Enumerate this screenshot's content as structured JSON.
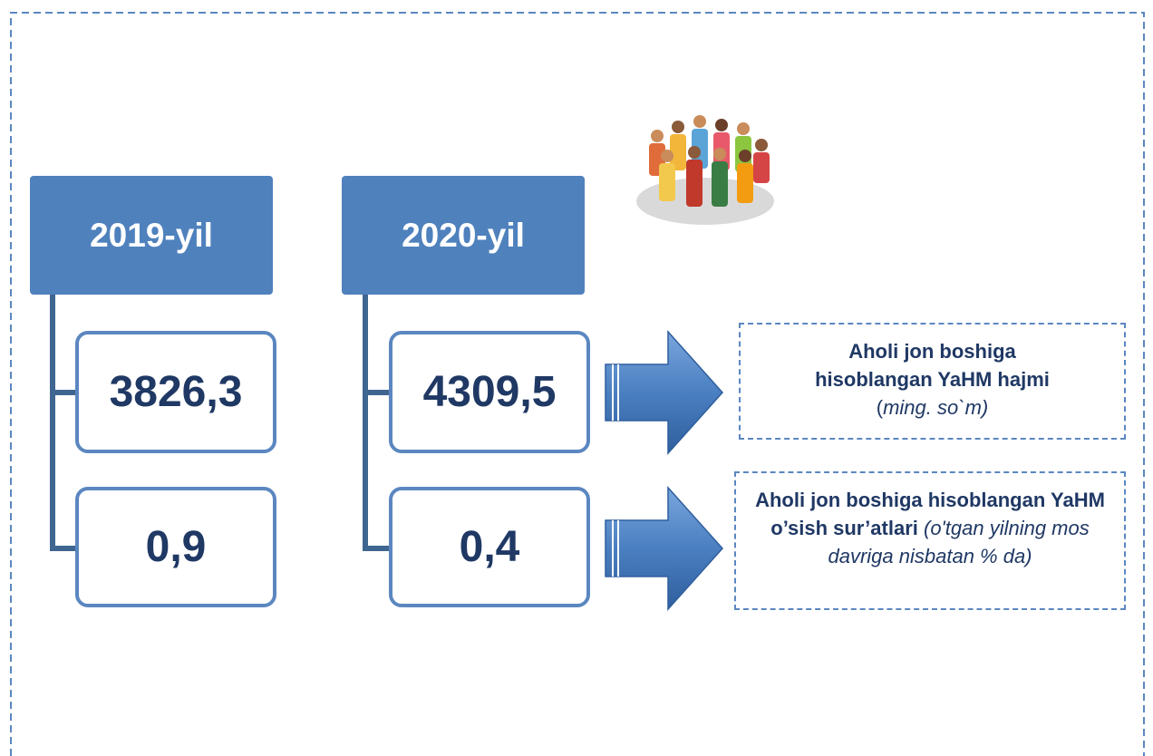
{
  "columns": [
    {
      "year": "2019-yil",
      "values": [
        "3826,3",
        "0,9"
      ]
    },
    {
      "year": "2020-yil",
      "values": [
        "4309,5",
        "0,4"
      ]
    }
  ],
  "descriptions": [
    {
      "bold": "Aholi jon boshiga hisoblangan YaHM hajmi",
      "plain": "(",
      "italic": "ming. so`m)"
    },
    {
      "bold": "Aholi jon boshiga hisoblangan YaHM o’sish sur’atlari",
      "italic": "(o'tgan yilning mos davriga nisbatan % da)"
    }
  ]
}
